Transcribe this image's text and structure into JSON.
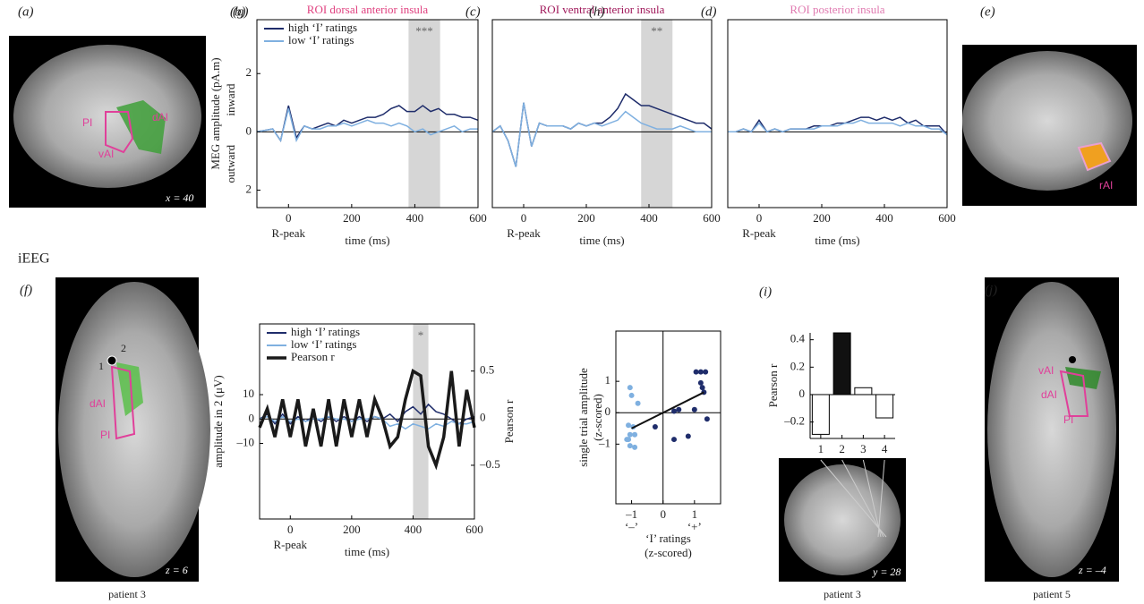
{
  "panels": {
    "a": "(a)",
    "e": "(e)",
    "f": "(f)",
    "j": "(j)",
    "section": "iEEG",
    "a_pi": "PI",
    "a_dai": "dAI",
    "a_vai": "vAI",
    "a_coord": "x = 40",
    "e_rai": "rAI",
    "f_1": "1",
    "f_2": "2",
    "f_dai": "dAI",
    "f_pi": "PI",
    "f_coord": "z = 6",
    "f_caption": "patient 3",
    "i_coord": "y = 28",
    "i_caption": "patient 3",
    "j_vai": "vAI",
    "j_dai": "dAI",
    "j_pi": "PI",
    "j_coord": "z = –4",
    "j_caption": "patient 5"
  },
  "chart_data": [
    {
      "type": "line",
      "label": "(b)",
      "title": "ROI dorsal anterior insula",
      "title_color": "#e0407f",
      "x": [
        -100,
        -75,
        -50,
        -25,
        0,
        25,
        50,
        75,
        100,
        125,
        150,
        175,
        200,
        225,
        250,
        275,
        300,
        325,
        350,
        375,
        400,
        425,
        450,
        475,
        500,
        525,
        550,
        575,
        600
      ],
      "series": [
        {
          "name": "high ‘I’ ratings",
          "color": "#1f2d6b",
          "values": [
            0,
            0.05,
            0.1,
            -0.3,
            0.9,
            -0.2,
            0.2,
            0.1,
            0.2,
            0.3,
            0.2,
            0.4,
            0.3,
            0.4,
            0.5,
            0.5,
            0.6,
            0.8,
            0.9,
            0.7,
            0.7,
            0.9,
            0.7,
            0.8,
            0.6,
            0.6,
            0.5,
            0.5,
            0.4
          ]
        },
        {
          "name": "low ‘I’ ratings",
          "color": "#7fb0e0",
          "values": [
            0,
            0.05,
            0.1,
            -0.3,
            0.8,
            -0.3,
            0.2,
            0.1,
            0.1,
            0.2,
            0.2,
            0.3,
            0.2,
            0.3,
            0.4,
            0.3,
            0.3,
            0.2,
            0.3,
            0.2,
            0.0,
            0.1,
            -0.1,
            0.0,
            0.1,
            0.2,
            0.0,
            0.1,
            0.1
          ]
        }
      ],
      "highlight": [
        380,
        480
      ],
      "annotation": "***",
      "xlim": [
        -100,
        600
      ],
      "xticks": [
        0,
        200,
        400,
        600
      ],
      "xnote": "R-peak",
      "xlabel": "time (ms)",
      "ylim": [
        -2.6,
        3.85
      ],
      "yticks": [
        {
          "value": -2,
          "label": "2"
        },
        0,
        2
      ],
      "ylabel": "MEG amplitude (pA.m)",
      "ylabel_up": "inward",
      "ylabel_down": "outward",
      "legend": "upper left"
    },
    {
      "type": "line",
      "label": "(c)",
      "title": "ROI ventral anterior insula",
      "title_color": "#a0185a",
      "x": [
        -100,
        -75,
        -50,
        -25,
        0,
        25,
        50,
        75,
        100,
        125,
        150,
        175,
        200,
        225,
        250,
        275,
        300,
        325,
        350,
        375,
        400,
        425,
        450,
        475,
        500,
        525,
        550,
        575,
        600
      ],
      "series": [
        {
          "name": "high ‘I’ ratings",
          "color": "#1f2d6b",
          "values": [
            0,
            0.2,
            -0.3,
            -1.2,
            1.0,
            -0.5,
            0.3,
            0.2,
            0.2,
            0.2,
            0.1,
            0.3,
            0.2,
            0.3,
            0.3,
            0.5,
            0.8,
            1.3,
            1.1,
            0.9,
            0.9,
            0.8,
            0.7,
            0.6,
            0.5,
            0.4,
            0.3,
            0.3,
            0.1
          ]
        },
        {
          "name": "low ‘I’ ratings",
          "color": "#7fb0e0",
          "values": [
            0,
            0.2,
            -0.3,
            -1.2,
            1.0,
            -0.5,
            0.3,
            0.2,
            0.2,
            0.2,
            0.1,
            0.3,
            0.2,
            0.3,
            0.2,
            0.3,
            0.4,
            0.7,
            0.5,
            0.3,
            0.2,
            0.1,
            0.1,
            0.1,
            0.2,
            0.1,
            0.0,
            0.0,
            0.0
          ]
        }
      ],
      "highlight": [
        375,
        475
      ],
      "annotation": "**",
      "xlim": [
        -100,
        600
      ],
      "xticks": [
        0,
        200,
        400,
        600
      ],
      "xnote": "R-peak",
      "xlabel": "time (ms)",
      "ylim": [
        -2.6,
        3.85
      ]
    },
    {
      "type": "line",
      "label": "(d)",
      "title": "ROI posterior insula",
      "title_color": "#e07ab0",
      "x": [
        -100,
        -75,
        -50,
        -25,
        0,
        25,
        50,
        75,
        100,
        125,
        150,
        175,
        200,
        225,
        250,
        275,
        300,
        325,
        350,
        375,
        400,
        425,
        450,
        475,
        500,
        525,
        550,
        575,
        600
      ],
      "series": [
        {
          "name": "high ‘I’ ratings",
          "color": "#1f2d6b",
          "values": [
            0,
            0,
            0.1,
            0,
            0.4,
            0,
            0.1,
            0,
            0.1,
            0.1,
            0.1,
            0.2,
            0.2,
            0.2,
            0.3,
            0.3,
            0.4,
            0.5,
            0.5,
            0.4,
            0.5,
            0.4,
            0.5,
            0.3,
            0.4,
            0.2,
            0.2,
            0.2,
            -0.1
          ]
        },
        {
          "name": "low ‘I’ ratings",
          "color": "#7fb0e0",
          "values": [
            0,
            0,
            0.1,
            0,
            0.3,
            0,
            0.1,
            0,
            0.1,
            0.1,
            0.1,
            0.1,
            0.2,
            0.2,
            0.2,
            0.3,
            0.3,
            0.4,
            0.3,
            0.3,
            0.3,
            0.3,
            0.2,
            0.3,
            0.2,
            0.2,
            0.1,
            0.1,
            -0.1
          ]
        }
      ],
      "xlim": [
        -100,
        600
      ],
      "xticks": [
        0,
        200,
        400,
        600
      ],
      "xnote": "R-peak",
      "xlabel": "time (ms)",
      "ylim": [
        -2.6,
        3.85
      ]
    },
    {
      "type": "line",
      "label": "(g)",
      "x": [
        -100,
        -75,
        -50,
        -25,
        0,
        25,
        50,
        75,
        100,
        125,
        150,
        175,
        200,
        225,
        250,
        275,
        300,
        325,
        350,
        375,
        400,
        425,
        450,
        475,
        500,
        525,
        550,
        575,
        600
      ],
      "series": [
        {
          "name": "high ‘I’ ratings",
          "color": "#1f2d6b",
          "values": [
            0,
            2,
            -2,
            2,
            -2,
            1,
            -1,
            1,
            -1,
            1,
            -1,
            1,
            -1,
            1,
            -1,
            1,
            0,
            2,
            -1,
            3,
            5,
            2,
            6,
            3,
            2,
            0,
            -2,
            0,
            1
          ]
        },
        {
          "name": "low ‘I’ ratings",
          "color": "#7fb0e0",
          "values": [
            0,
            1,
            -1,
            1,
            -1,
            0,
            -1,
            0,
            0,
            1,
            0,
            0,
            -1,
            0,
            0,
            1,
            0,
            -3,
            -2,
            -4,
            -2,
            -3,
            -4,
            -2,
            -3,
            -1,
            -2,
            -2,
            -1
          ]
        },
        {
          "name": "Pearson r",
          "color": "#1a1a1a",
          "axis": "y2",
          "values": [
            -0.1,
            0.1,
            -0.2,
            0.2,
            -0.2,
            0.2,
            -0.3,
            0.1,
            -0.3,
            0.2,
            -0.3,
            0.2,
            -0.2,
            0.2,
            -0.2,
            0.2,
            0.0,
            -0.3,
            -0.2,
            0.2,
            0.5,
            0.45,
            -0.3,
            -0.5,
            -0.2,
            0.5,
            -0.3,
            0.3,
            -0.1
          ]
        }
      ],
      "highlight": [
        400,
        450
      ],
      "annotation": "*",
      "xlim": [
        -100,
        600
      ],
      "xticks": [
        0,
        200,
        400,
        600
      ],
      "xnote": "R-peak",
      "xlabel": "time (ms)",
      "ylim": [
        -41,
        39
      ],
      "yticks": [
        {
          "value": -10,
          "label": "–10"
        },
        0,
        10
      ],
      "ylabel": "amplitude in 2 (μV)",
      "y2lim": [
        -1.07,
        1.0
      ],
      "y2ticks": [
        {
          "value": -0.5,
          "label": "–0.5"
        },
        0,
        0.5
      ],
      "y2label": "Pearson r",
      "legend": "upper left"
    },
    {
      "type": "scatter",
      "label": "(h)",
      "series": [
        {
          "name": "low ‘I’ ratings",
          "color": "#7fb0e0",
          "x": [
            -1.05,
            -1.0,
            -0.8,
            -1.1,
            -0.95,
            -1.05,
            -0.9,
            -1.1,
            -1.05,
            -0.9,
            -1.15
          ],
          "y": [
            0.8,
            0.55,
            0.3,
            -0.4,
            -0.45,
            -0.7,
            -0.7,
            -0.85,
            -1.05,
            -1.1,
            -0.85
          ]
        },
        {
          "name": "high ‘I’ ratings",
          "color": "#1f2d6b",
          "x": [
            1.05,
            1.2,
            1.35,
            1.2,
            1.3,
            1.25,
            1.4,
            1.0,
            0.5,
            0.35,
            0.35,
            0.8,
            -0.25
          ],
          "y": [
            1.3,
            1.3,
            1.3,
            0.95,
            0.65,
            0.8,
            -0.2,
            0.1,
            0.1,
            0.05,
            -0.85,
            -0.75,
            -0.45
          ]
        }
      ],
      "trend_line": {
        "x": [
          -1,
          1.3
        ],
        "y": [
          -0.5,
          0.65
        ]
      },
      "xlim": [
        -1.5,
        1.83
      ],
      "xticks": [
        {
          "value": -1,
          "label": "–1"
        },
        0,
        1
      ],
      "xsublabels": [
        "‘–’",
        "‘+’"
      ],
      "xlabel": [
        "‘I’ ratings",
        "(z-scored)"
      ],
      "ylim": [
        -2.9,
        2.6
      ],
      "yticks": [
        {
          "value": -1,
          "label": "–1"
        },
        0,
        1
      ],
      "ylabel": [
        "single trial amplitude",
        "(z-scored)"
      ]
    },
    {
      "type": "bar",
      "label": "(i)",
      "categories": [
        "1",
        "2",
        "3",
        "4"
      ],
      "values": [
        -0.29,
        0.45,
        0.05,
        -0.17
      ],
      "colors": [
        "#ffffff",
        "#111111",
        "#ffffff",
        "#ffffff"
      ],
      "ylim": [
        -0.32,
        0.45
      ],
      "yticks": [
        {
          "value": -0.2,
          "label": "–0.2"
        },
        0,
        0.2,
        0.4
      ],
      "ylabel": "Pearson r"
    }
  ]
}
